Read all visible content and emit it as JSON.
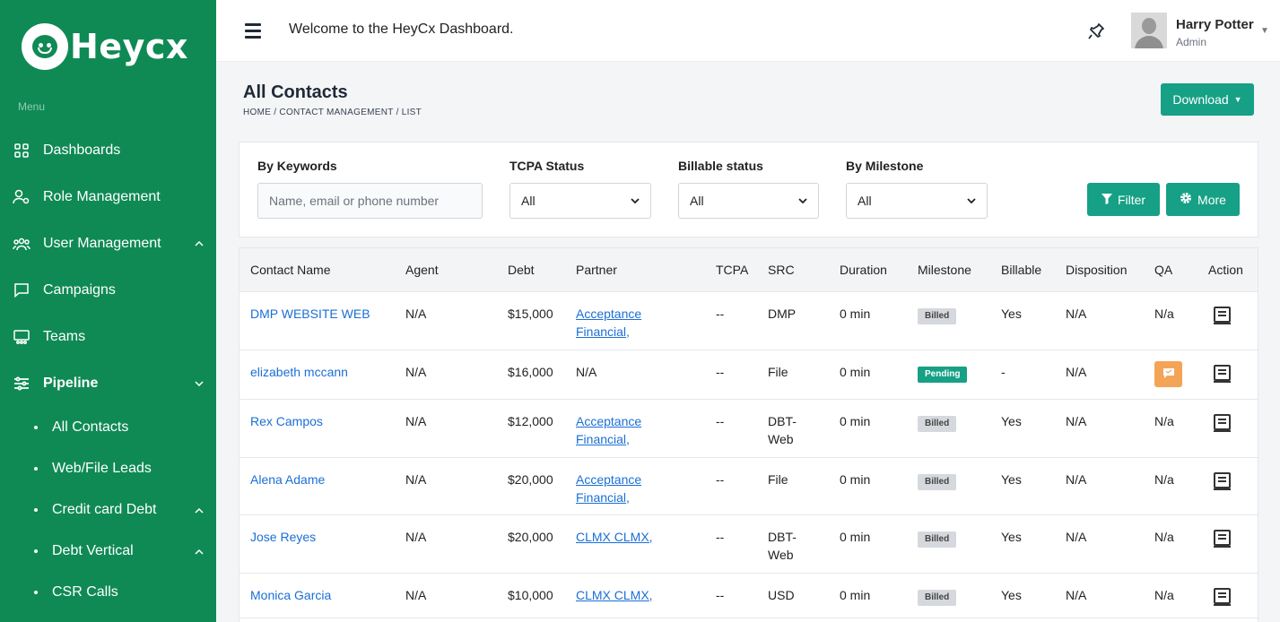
{
  "sidebar": {
    "brand": "Heycx",
    "menu_label": "Menu",
    "items": [
      {
        "label": "Dashboards"
      },
      {
        "label": "Role Management"
      },
      {
        "label": "User Management"
      },
      {
        "label": "Campaigns"
      },
      {
        "label": "Teams"
      },
      {
        "label": "Pipeline"
      }
    ],
    "sub_items": [
      {
        "label": "All Contacts"
      },
      {
        "label": "Web/File Leads"
      },
      {
        "label": "Credit card Debt"
      },
      {
        "label": "Debt Vertical"
      },
      {
        "label": "CSR Calls"
      }
    ]
  },
  "header": {
    "welcome": "Welcome to the HeyCx Dashboard.",
    "user_name": "Harry Potter",
    "user_role": "Admin"
  },
  "page": {
    "title": "All Contacts",
    "breadcrumb": "HOME / CONTACT MANAGEMENT / LIST",
    "download_label": "Download"
  },
  "filters": {
    "keywords_label": "By Keywords",
    "keywords_placeholder": "Name, email or phone number",
    "tcpa_label": "TCPA Status",
    "tcpa_value": "All",
    "billable_label": "Billable status",
    "billable_value": "All",
    "milestone_label": "By Milestone",
    "milestone_value": "All",
    "filter_label": "Filter",
    "more_label": "More"
  },
  "table": {
    "columns": [
      "Contact Name",
      "Agent",
      "Debt",
      "Partner",
      "TCPA",
      "SRC",
      "Duration",
      "Milestone",
      "Billable",
      "Disposition",
      "QA",
      "Action"
    ],
    "rows": [
      {
        "name": "DMP WEBSITE WEB",
        "agent": "N/A",
        "debt": "$15,000",
        "partner1": "Acceptance",
        "partner2": "Financial,",
        "tcpa": "--",
        "src1": "DMP",
        "src2": "",
        "duration": "0 min",
        "milestone": "Billed",
        "billable": "Yes",
        "disposition": "N/A",
        "qa": "N/a"
      },
      {
        "name": "elizabeth mccann",
        "agent": "N/A",
        "debt": "$16,000",
        "partner1": "N/A",
        "partner2": "",
        "tcpa": "--",
        "src1": "File",
        "src2": "",
        "duration": "0 min",
        "milestone": "Pending",
        "billable": "-",
        "disposition": "N/A",
        "qa": ""
      },
      {
        "name": "Rex Campos",
        "agent": "N/A",
        "debt": "$12,000",
        "partner1": "Acceptance",
        "partner2": "Financial,",
        "tcpa": "--",
        "src1": "DBT-",
        "src2": "Web",
        "duration": "0 min",
        "milestone": "Billed",
        "billable": "Yes",
        "disposition": "N/A",
        "qa": "N/a"
      },
      {
        "name": "Alena Adame",
        "agent": "N/A",
        "debt": "$20,000",
        "partner1": "Acceptance",
        "partner2": "Financial,",
        "tcpa": "--",
        "src1": "File",
        "src2": "",
        "duration": "0 min",
        "milestone": "Billed",
        "billable": "Yes",
        "disposition": "N/A",
        "qa": "N/a"
      },
      {
        "name": "Jose Reyes",
        "agent": "N/A",
        "debt": "$20,000",
        "partner1": "CLMX CLMX,",
        "partner2": "",
        "tcpa": "--",
        "src1": "DBT-",
        "src2": "Web",
        "duration": "0 min",
        "milestone": "Billed",
        "billable": "Yes",
        "disposition": "N/A",
        "qa": "N/a"
      },
      {
        "name": "Monica Garcia",
        "agent": "N/A",
        "debt": "$10,000",
        "partner1": "CLMX CLMX,",
        "partner2": "",
        "tcpa": "--",
        "src1": "USD",
        "src2": "",
        "duration": "0 min",
        "milestone": "Billed",
        "billable": "Yes",
        "disposition": "N/A",
        "qa": "N/a"
      }
    ]
  },
  "colors": {
    "sidebar": "#0f8a55",
    "accent": "#16a085",
    "link": "#1a6fd6",
    "qa_button": "#f4a456"
  }
}
